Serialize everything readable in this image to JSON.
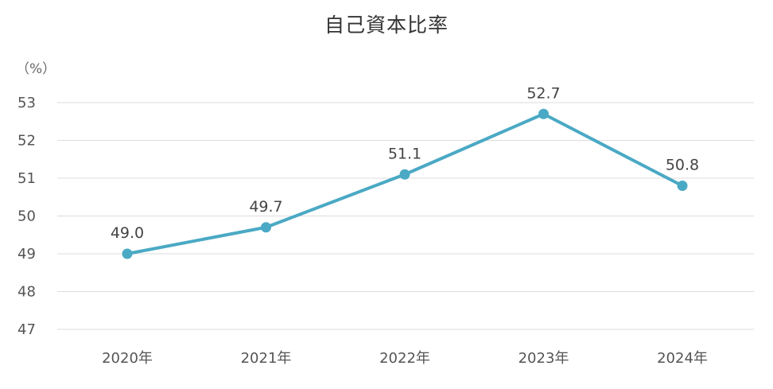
{
  "chart_data": {
    "type": "line",
    "title": "自己資本比率",
    "unit_label": "（%）",
    "categories": [
      "2020年",
      "2021年",
      "2022年",
      "2023年",
      "2024年"
    ],
    "series": [
      {
        "values": [
          49.0,
          49.7,
          51.1,
          52.7,
          50.8
        ],
        "labels": [
          "49.0",
          "49.7",
          "51.1",
          "52.7",
          "50.8"
        ],
        "color": "#4aa9c4"
      }
    ],
    "ylim": [
      47,
      53
    ],
    "yticks": [
      53,
      52,
      51,
      50,
      49,
      48,
      47
    ],
    "grid": true,
    "legend": "none"
  }
}
